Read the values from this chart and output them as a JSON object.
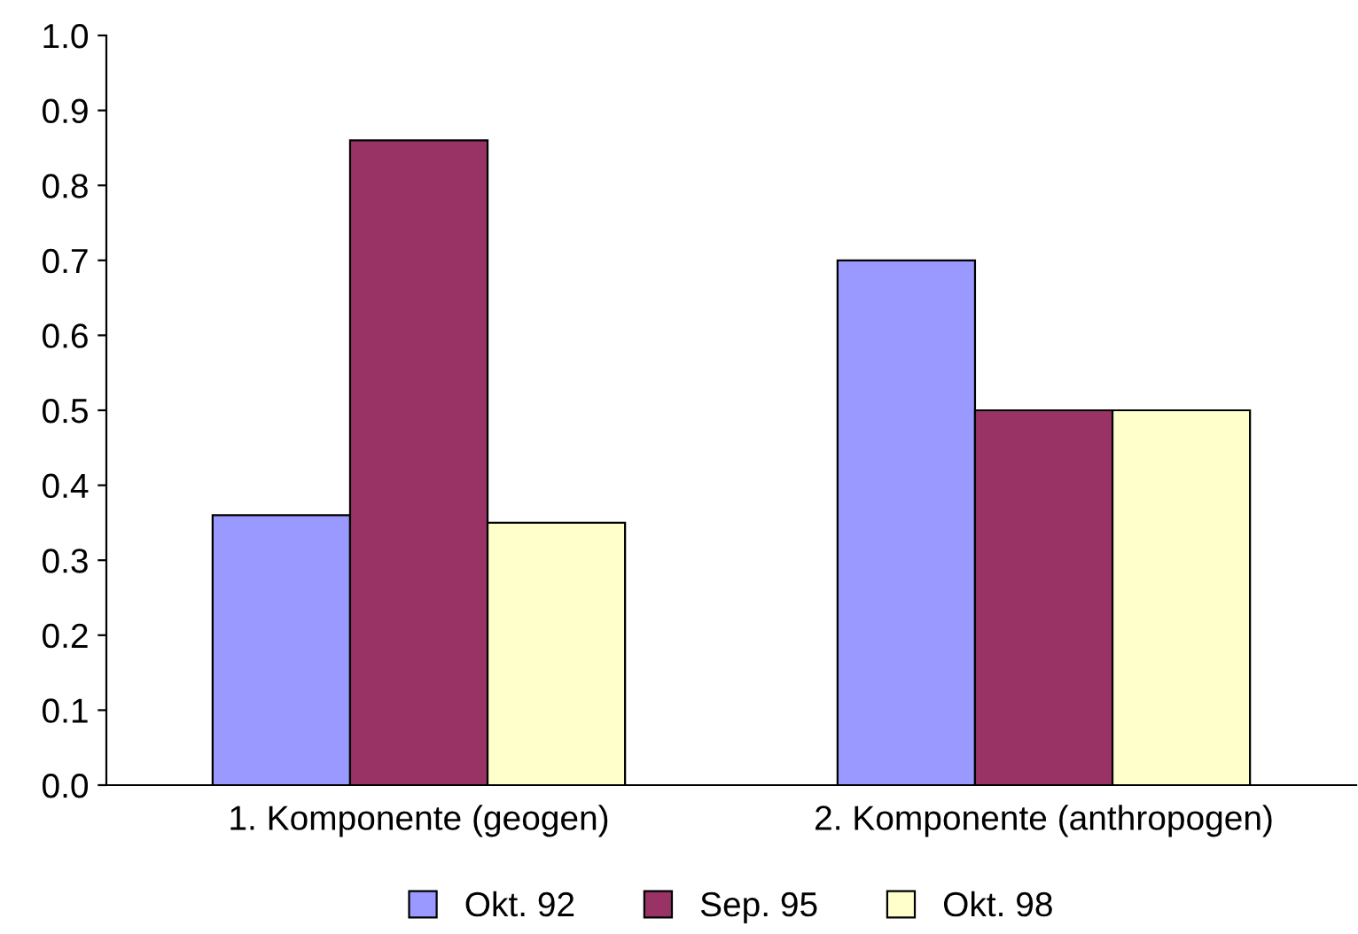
{
  "chart_data": {
    "type": "bar",
    "categories": [
      "1. Komponente (geogen)",
      "2. Komponente (anthropogen)"
    ],
    "series": [
      {
        "name": "Okt. 92",
        "color": "#9999ff",
        "values": [
          0.36,
          0.7
        ]
      },
      {
        "name": "Sep. 95",
        "color": "#993366",
        "values": [
          0.86,
          0.5
        ]
      },
      {
        "name": "Okt. 98",
        "color": "#ffffcc",
        "values": [
          0.35,
          0.5
        ]
      }
    ],
    "ylim": [
      0,
      1.0
    ],
    "yticks": [
      {
        "value": 0,
        "label": "0.0"
      },
      {
        "value": 0.1,
        "label": "0.1"
      },
      {
        "value": 0.2,
        "label": "0.2"
      },
      {
        "value": 0.3,
        "label": "0.3"
      },
      {
        "value": 0.4,
        "label": "0.4"
      },
      {
        "value": 0.5,
        "label": "0.5"
      },
      {
        "value": 0.6,
        "label": "0.6"
      },
      {
        "value": 0.7,
        "label": "0.7"
      },
      {
        "value": 0.8,
        "label": "0.8"
      },
      {
        "value": 0.9,
        "label": "0.9"
      },
      {
        "value": 1.0,
        "label": "1.0"
      }
    ],
    "grid": false,
    "legend": "bottom"
  }
}
